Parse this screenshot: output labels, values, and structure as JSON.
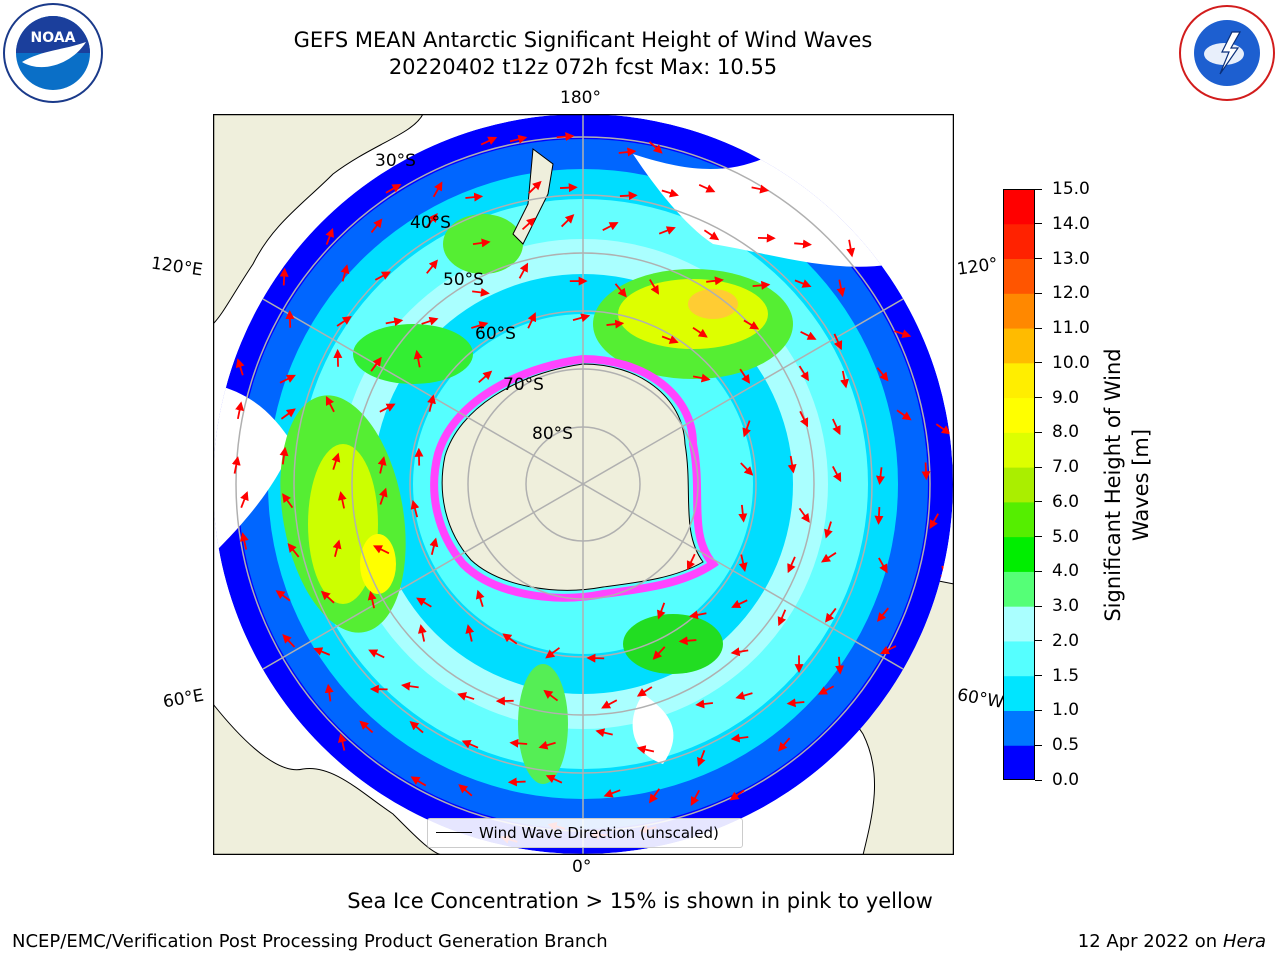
{
  "header": {
    "title_line1": "GEFS MEAN Antarctic Significant Height of Wind Waves",
    "title_line2": "20220402 t12z 072h fcst   Max: 10.55"
  },
  "logos": {
    "noaa": {
      "text": "NOAA",
      "ring_text": "NATIONAL OCEANIC AND ATMOSPHERIC ADMINISTRATION · U.S. DEPARTMENT OF COMMERCE"
    },
    "nws": {
      "ring_text": "NATIONAL WEATHER SERVICE"
    }
  },
  "map": {
    "longitude_labels": {
      "top": "180°",
      "bottom": "0°",
      "left_upper": "120°E",
      "left_lower": "60°E",
      "right_upper": "120°",
      "right_lower": "60°W"
    },
    "latitude_labels": [
      "30°S",
      "40°S",
      "50°S",
      "60°S",
      "70°S",
      "80°S"
    ],
    "legend": "Wind Wave Direction (unscaled)",
    "colors": {
      "land": "#efefdc",
      "grid": "#b0b0b0",
      "arrow": "#ff0000",
      "sea_ice": "#ff44ff"
    }
  },
  "colorbar": {
    "label": "Significant Height of Wind Waves [m]",
    "ticks": [
      "0.0",
      "0.5",
      "1.0",
      "1.5",
      "2.0",
      "3.0",
      "4.0",
      "5.0",
      "6.0",
      "7.0",
      "8.0",
      "9.0",
      "10.0",
      "11.0",
      "12.0",
      "13.0",
      "14.0",
      "15.0"
    ],
    "colors": [
      "#0000ff",
      "#0077ff",
      "#00e5ff",
      "#55ffff",
      "#aaffff",
      "#55ff77",
      "#00ee00",
      "#55ee00",
      "#aaee00",
      "#ddff00",
      "#ffff00",
      "#ffee00",
      "#ffbb00",
      "#ff8800",
      "#ff5500",
      "#ff2200",
      "#ff0000"
    ]
  },
  "notes": {
    "sea_ice": "Sea Ice Concentration > 15% is shown in pink to yellow"
  },
  "footer": {
    "left": "NCEP/EMC/Verification Post Processing Product Generation Branch",
    "right_date": "12 Apr 2022 on ",
    "right_machine": "Hera"
  }
}
